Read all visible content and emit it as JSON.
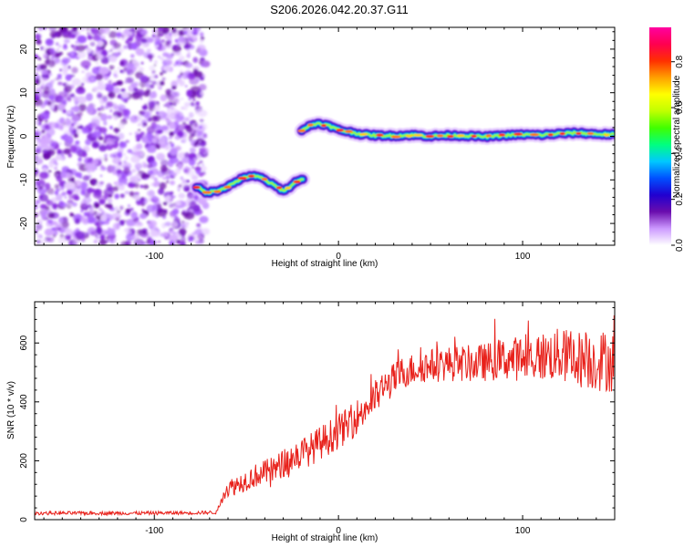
{
  "title": "S206.2026.042.20.37.G11",
  "chart_data": [
    {
      "type": "heatmap",
      "name": "spectrogram",
      "xlabel": "Height of straight line (km)",
      "ylabel": "Frequency (Hz)",
      "xlim": [
        -165,
        150
      ],
      "ylim": [
        -25,
        25
      ],
      "xticks": [
        -100,
        0,
        100
      ],
      "yticks": [
        -20,
        -10,
        0,
        10,
        20
      ],
      "colorbar": {
        "label": "Normalized spectral amplitude",
        "range": [
          0,
          0.95
        ],
        "ticks": [
          0.0,
          0.2,
          0.4,
          0.6,
          0.8
        ],
        "colors": [
          "#ffffff",
          "#cc99ff",
          "#6a0dad",
          "#2000d0",
          "#0050ff",
          "#00c8ff",
          "#00ff80",
          "#40ff00",
          "#c0ff00",
          "#ffff00",
          "#ffa000",
          "#ff3000",
          "#ff0050",
          "#ff00a0"
        ]
      },
      "noise_region": {
        "x_range": [
          -165,
          -75
        ],
        "freq_range": [
          -25,
          25
        ]
      },
      "tracks": [
        {
          "x": [
            -77,
            -72,
            -66,
            -60,
            -54,
            -48,
            -42,
            -36,
            -30,
            -26,
            -22,
            -19
          ],
          "freq": [
            -11.5,
            -13,
            -12.5,
            -11.5,
            -10,
            -9,
            -9.5,
            -11,
            -12.5,
            -11.5,
            -10,
            -10
          ]
        },
        {
          "x": [
            -20,
            -15,
            -11,
            -6,
            0,
            6,
            12,
            20,
            30,
            40,
            50,
            60,
            70,
            80,
            90,
            100,
            110,
            120,
            130,
            140,
            150
          ],
          "freq": [
            1.5,
            2.5,
            3.0,
            2.5,
            1.5,
            1.0,
            0.5,
            0.2,
            0.1,
            0.3,
            0.0,
            0.2,
            0.1,
            -0.1,
            0.2,
            0.4,
            0.3,
            0.6,
            0.8,
            0.5,
            0.4
          ]
        }
      ]
    },
    {
      "type": "line",
      "name": "snr",
      "xlabel": "Height of straight line (km)",
      "ylabel": "SNR (10 * v/v)",
      "xlim": [
        -165,
        150
      ],
      "ylim": [
        0,
        740
      ],
      "xticks": [
        -100,
        0,
        100
      ],
      "yticks": [
        0,
        200,
        400,
        600
      ],
      "color": "#e8211b",
      "trend": {
        "x": [
          -165,
          -140,
          -110,
          -80,
          -66,
          -62,
          -55,
          -45,
          -35,
          -25,
          -15,
          -5,
          5,
          15,
          25,
          35,
          45,
          60,
          75,
          90,
          105,
          120,
          135,
          150
        ],
        "y": [
          22,
          22,
          22,
          23,
          25,
          100,
          120,
          150,
          170,
          210,
          240,
          280,
          320,
          380,
          450,
          500,
          520,
          530,
          530,
          545,
          550,
          560,
          540,
          540
        ]
      },
      "noise_amplitude": {
        "x": [
          -165,
          -66,
          -62,
          -20,
          0,
          20,
          40,
          80,
          110,
          150
        ],
        "y": [
          6,
          6,
          30,
          55,
          60,
          60,
          55,
          65,
          85,
          110
        ]
      }
    }
  ]
}
